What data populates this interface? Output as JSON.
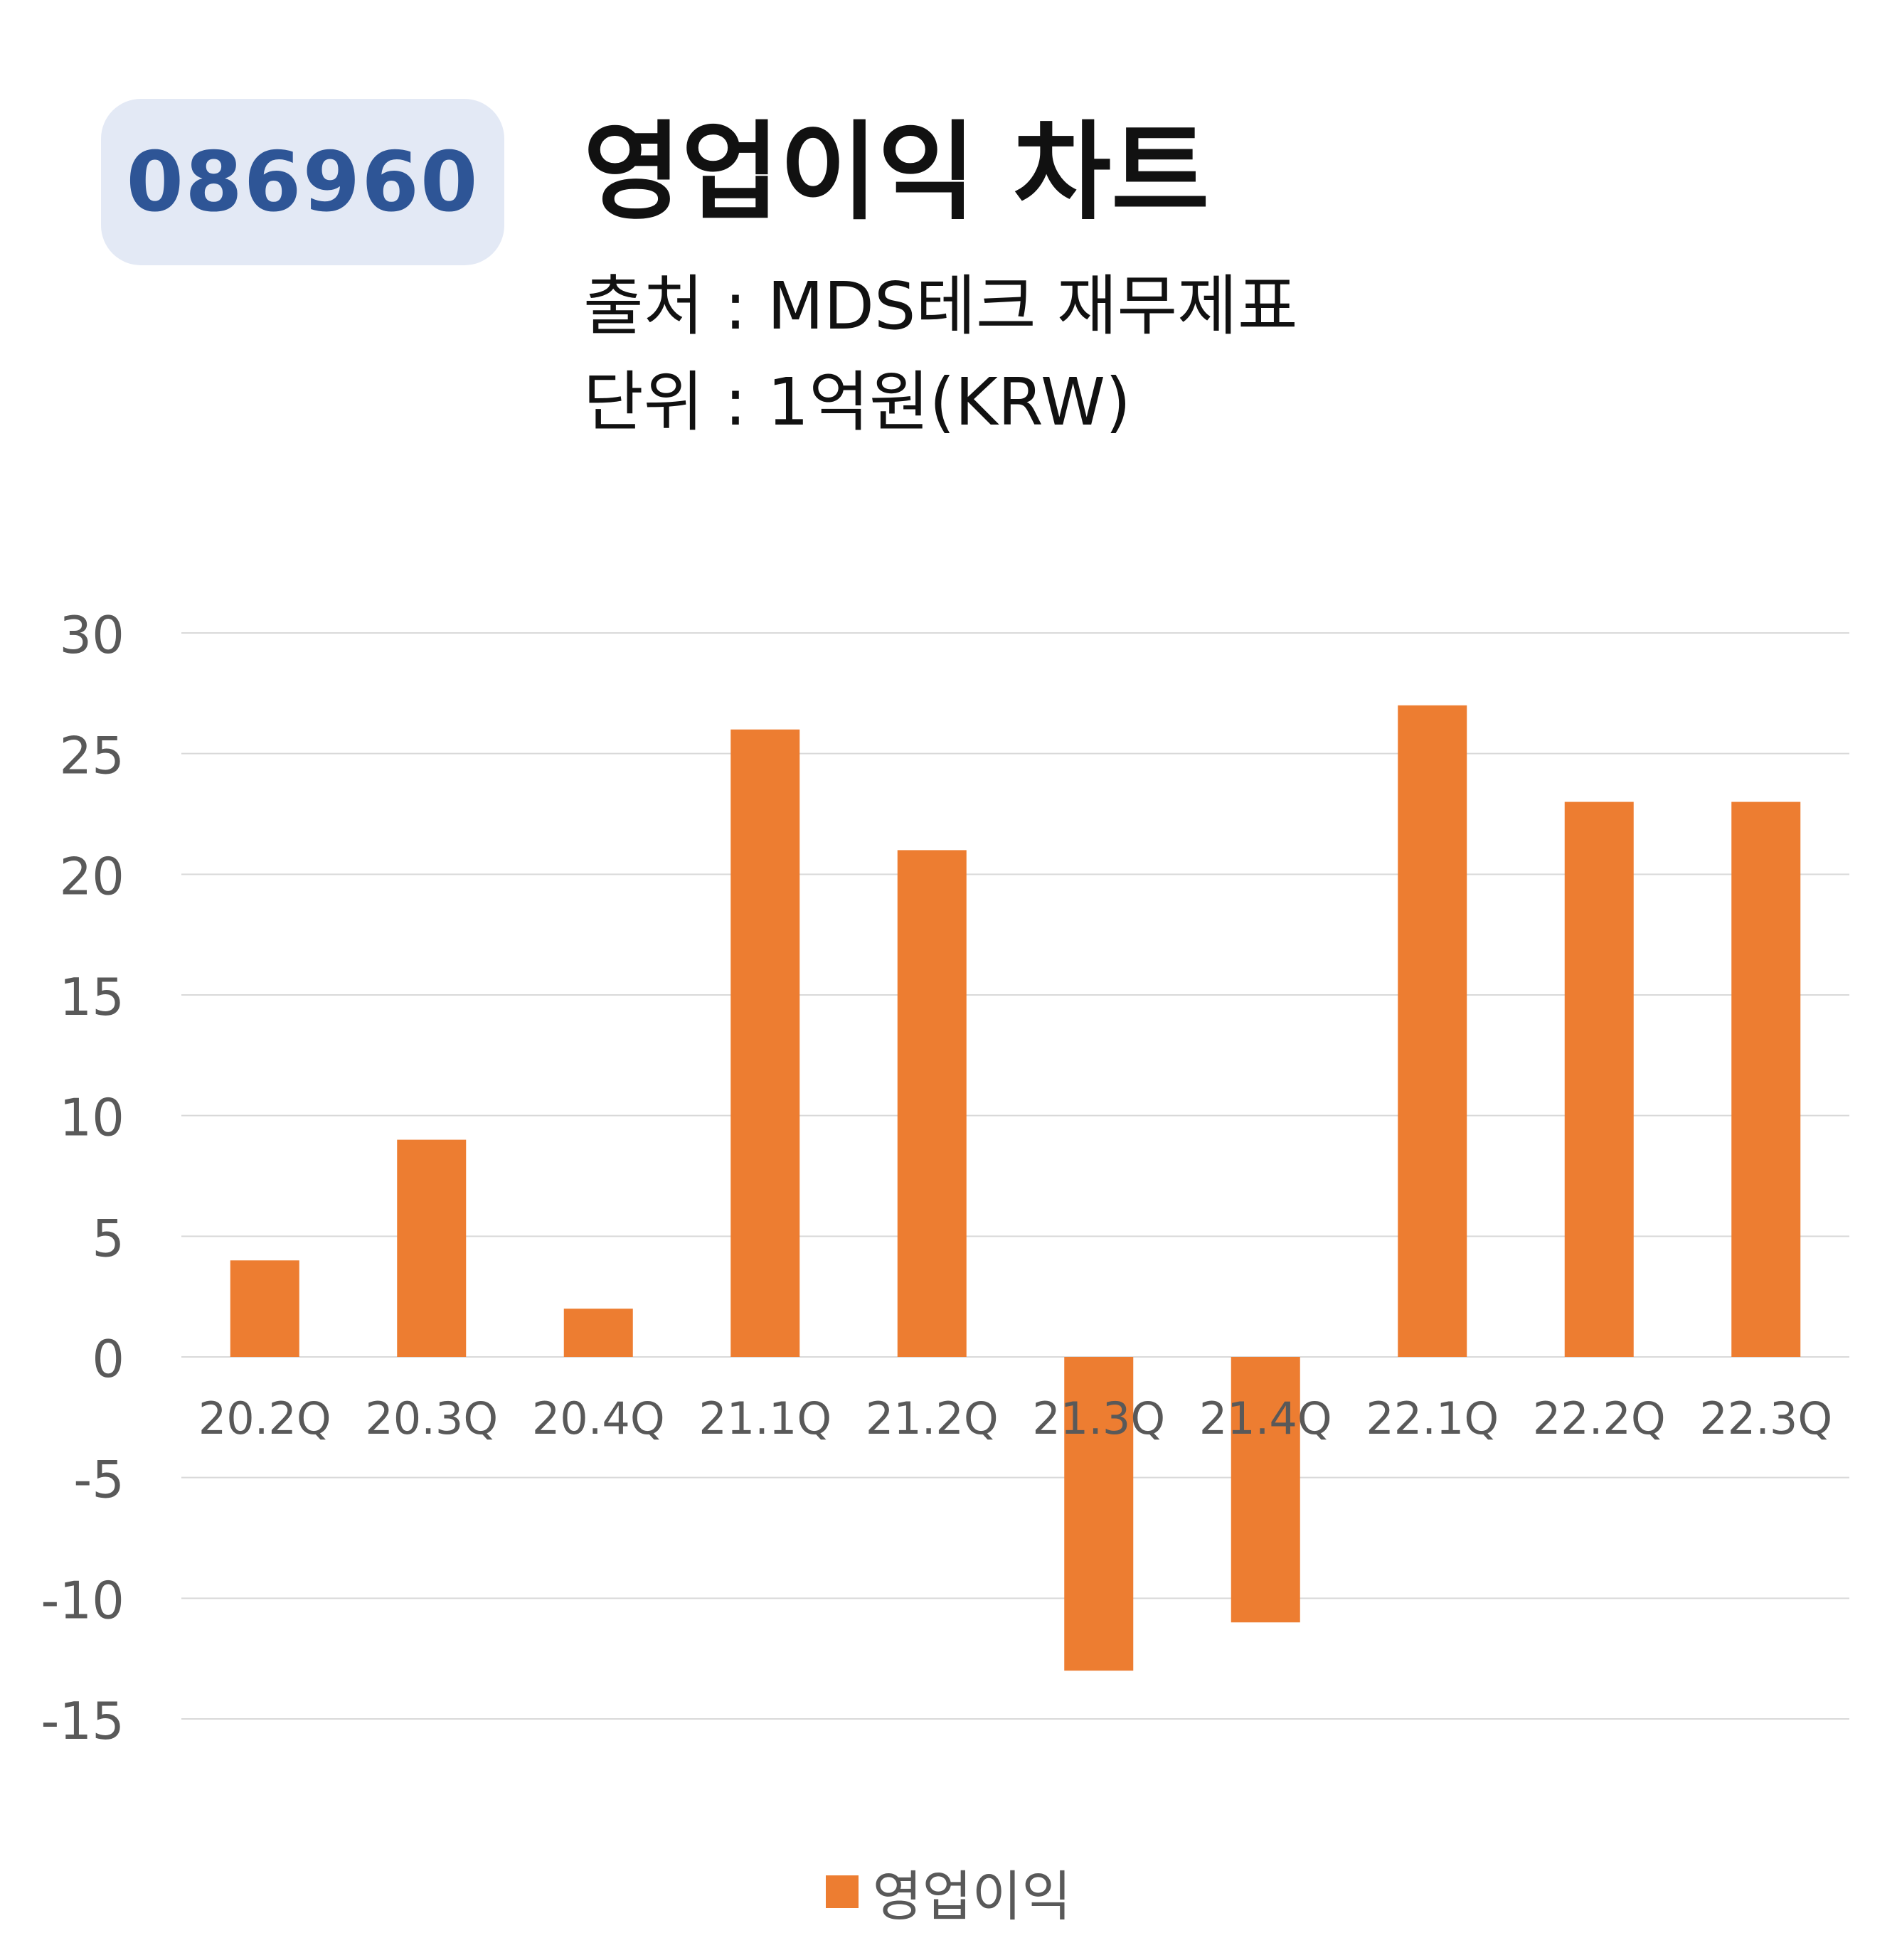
{
  "header": {
    "ticker": "086960",
    "title": "영업이익 차트",
    "source": "출처 : MDS테크 재무제표",
    "unit": "단위 : 1억원(KRW)"
  },
  "colors": {
    "bar": "#ed7d31",
    "badge_bg": "#e3e9f5",
    "badge_text": "#2e5596",
    "grid": "#d9d9d9",
    "axis_text": "#595959"
  },
  "legend": {
    "label": "영업이익"
  },
  "chart_data": {
    "type": "bar",
    "title": "영업이익 차트",
    "categories": [
      "20.2Q",
      "20.3Q",
      "20.4Q",
      "21.1Q",
      "21.2Q",
      "21.3Q",
      "21.4Q",
      "22.1Q",
      "22.2Q",
      "22.3Q"
    ],
    "series": [
      {
        "name": "영업이익",
        "values": [
          4,
          9,
          2,
          26,
          21,
          -13,
          -11,
          27,
          23,
          23
        ]
      }
    ],
    "ylim": [
      -15,
      30
    ],
    "yticks": [
      30,
      25,
      20,
      15,
      10,
      5,
      0,
      -5,
      -10,
      -15
    ],
    "grid": true,
    "legend_position": "bottom"
  }
}
